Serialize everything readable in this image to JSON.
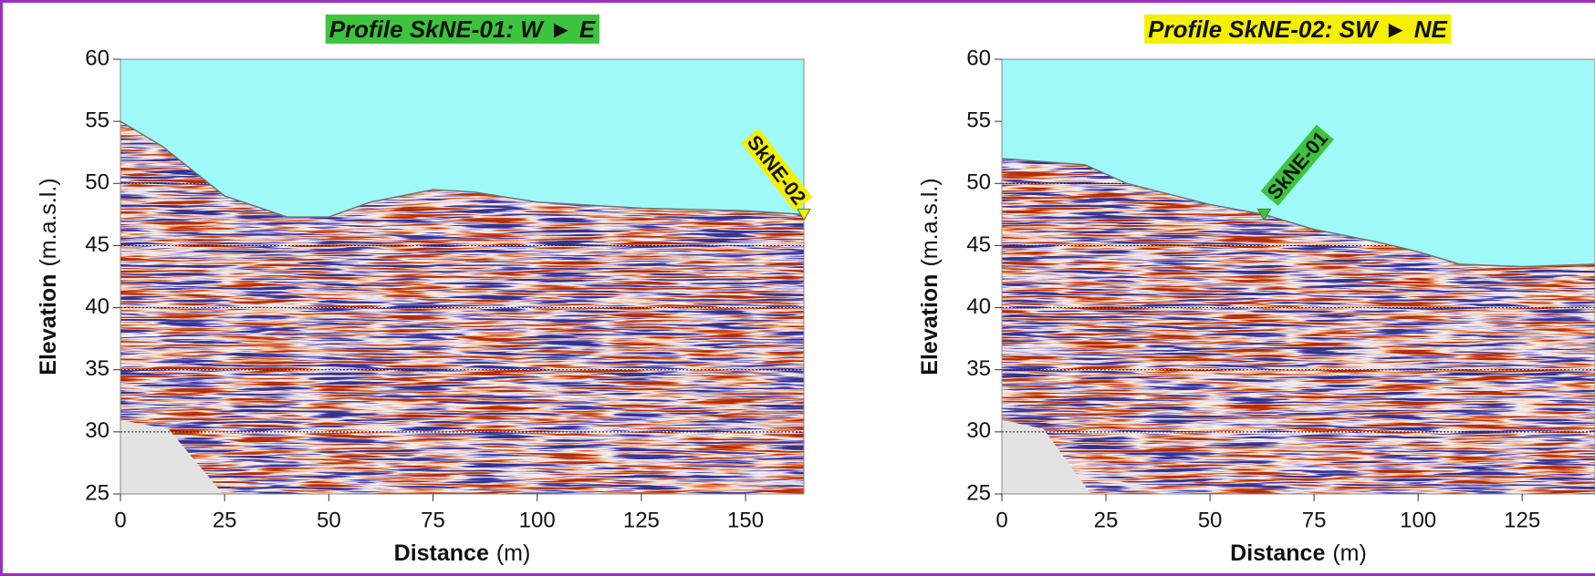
{
  "chart_data": [
    {
      "type": "radargram",
      "title": "Profile SkNE-01: W ► E",
      "title_background": "#3dc43d",
      "title_color": "#ffffff",
      "xlabel": "Distance",
      "xlabel_unit": "(m)",
      "ylabel": "Elevation",
      "ylabel_unit": "(m.a.s.l.)",
      "xlim": [
        0,
        164
      ],
      "ylim": [
        25,
        60
      ],
      "xticks": [
        0,
        25,
        50,
        75,
        100,
        125,
        150
      ],
      "yticks": [
        25,
        30,
        35,
        40,
        45,
        50,
        55,
        60
      ],
      "grid": true,
      "surface": {
        "x": [
          0,
          10,
          25,
          40,
          50,
          60,
          75,
          85,
          100,
          125,
          150,
          164
        ],
        "y": [
          55,
          53,
          49,
          47.3,
          47.3,
          48.5,
          49.5,
          49.3,
          48.5,
          48,
          47.8,
          47.5
        ],
        "color": "#707070"
      },
      "sky_color": "#9ff9f9",
      "marker": {
        "label": "SkNE-02",
        "x": 164,
        "y": 47.5,
        "color": "#f5f000",
        "text_color": "#000000"
      }
    },
    {
      "type": "radargram",
      "title": "Profile SkNE-02: SW ► NE",
      "title_background": "#f5f000",
      "title_color": "#000000",
      "xlabel": "Distance",
      "xlabel_unit": "(m)",
      "ylabel": "Elevation",
      "ylabel_unit": "(m.a.s.l.)",
      "xlim": [
        0,
        142.5
      ],
      "ylim": [
        25,
        60
      ],
      "xticks": [
        0,
        25,
        50,
        75,
        100,
        125
      ],
      "yticks": [
        25,
        30,
        35,
        40,
        45,
        50,
        55,
        60
      ],
      "grid": true,
      "surface": {
        "x": [
          0,
          20,
          30,
          50,
          63,
          75,
          90,
          100,
          110,
          125,
          142.5
        ],
        "y": [
          52,
          51.5,
          50,
          48.3,
          47.5,
          46.3,
          45.3,
          44.5,
          43.5,
          43.3,
          43.5
        ],
        "color": "#707070"
      },
      "sky_color": "#9ff9f9",
      "marker": {
        "label": "SkNE-01",
        "x": 63,
        "y": 47.5,
        "color": "#3dc43d",
        "text_color": "#ffffff"
      }
    }
  ]
}
